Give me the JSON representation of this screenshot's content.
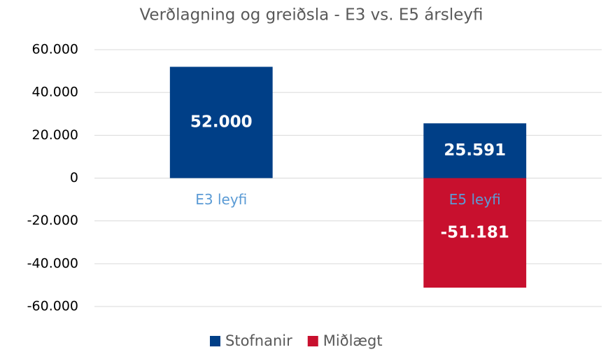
{
  "chart_data": {
    "type": "bar",
    "stacked": true,
    "title": "Verðlagning og greiðsla -  E3 vs. E5 ársleyfi",
    "categories": [
      "E3 leyfi",
      "E5 leyfi"
    ],
    "series": [
      {
        "name": "Stofnanir",
        "color": "#003f87",
        "values": [
          52000,
          25591
        ],
        "value_labels": [
          "52.000",
          "25.591"
        ]
      },
      {
        "name": "Miðlægt",
        "color": "#c8102e",
        "values": [
          null,
          -51181
        ],
        "value_labels": [
          null,
          "-51.181"
        ]
      }
    ],
    "ylim": [
      -60000,
      60000
    ],
    "yticks": [
      {
        "value": -60000,
        "label": "-60.000"
      },
      {
        "value": -40000,
        "label": "-40.000"
      },
      {
        "value": -20000,
        "label": "-20.000"
      },
      0,
      {
        "value": 20000,
        "label": "20.000"
      },
      {
        "value": 40000,
        "label": "40.000"
      },
      {
        "value": 60000,
        "label": "60.000"
      }
    ],
    "grid": true,
    "legend": "bottom"
  }
}
